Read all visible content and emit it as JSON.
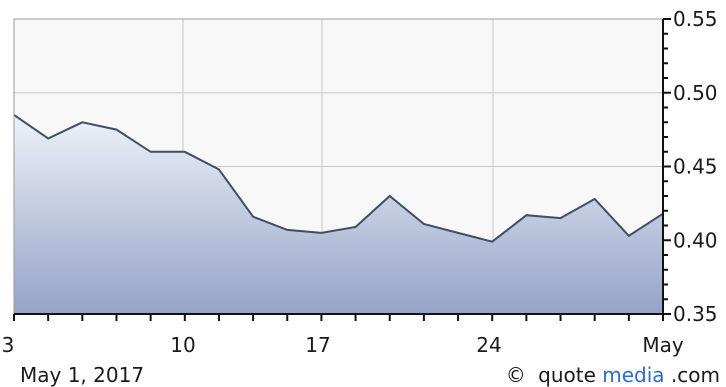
{
  "chart_data": {
    "type": "area",
    "title": "",
    "xlabel": "",
    "ylabel": "",
    "x_tick_labels": [
      "3",
      "10",
      "17",
      "24",
      "May"
    ],
    "y_tick_labels": [
      "0.55",
      "0.50",
      "0.45",
      "0.40",
      "0.35"
    ],
    "ylim": [
      0.35,
      0.55
    ],
    "y_ticks": [
      0.55,
      0.5,
      0.45,
      0.4,
      0.35
    ],
    "grid": true,
    "values": [
      0.485,
      0.469,
      0.48,
      0.475,
      0.46,
      0.46,
      0.448,
      0.416,
      0.407,
      0.405,
      0.409,
      0.43,
      0.411,
      0.405,
      0.399,
      0.417,
      0.415,
      0.428,
      0.403,
      0.418
    ],
    "date_label": "May 1, 2017",
    "colors": {
      "line": "#3d4f66",
      "fill_top": "#eef1f7",
      "fill_bottom": "#94a3c8",
      "grid": "#c8c8c8",
      "plot_bg": "#f8f8f8",
      "text": "#1a1a1a",
      "brand_accent": "#2b6cc4"
    }
  },
  "footer": {
    "copyright": "©",
    "brand_part1": "quote",
    "brand_part2": "media",
    "brand_part3": ".com"
  }
}
